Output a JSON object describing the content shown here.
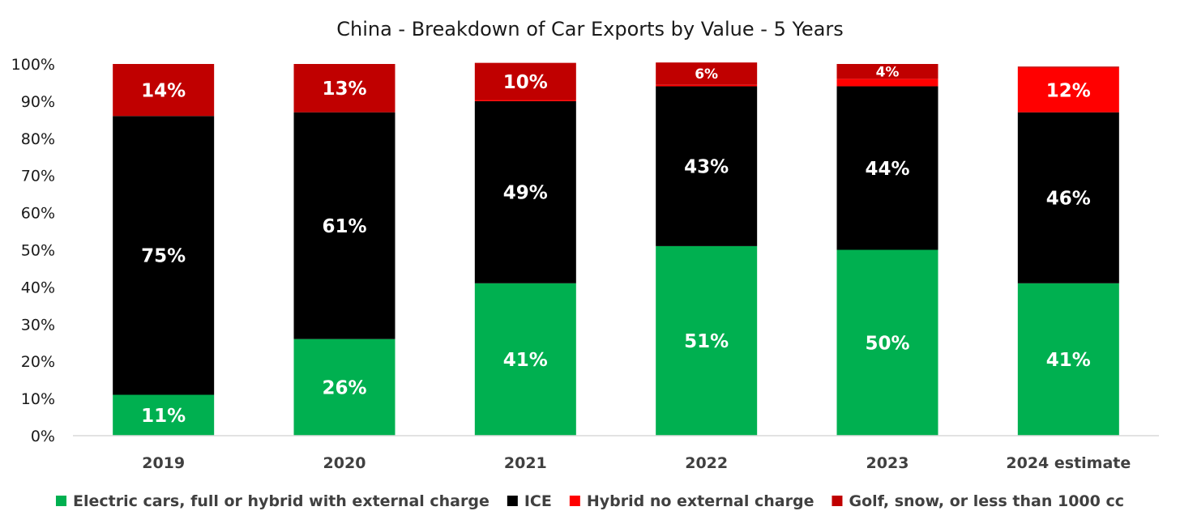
{
  "chart_data": {
    "type": "bar",
    "stacked": true,
    "title": "China - Breakdown of Car Exports by Value - 5 Years",
    "xlabel": "",
    "ylabel": "",
    "ylim": [
      0,
      100
    ],
    "y_ticks": [
      "0%",
      "10%",
      "20%",
      "30%",
      "40%",
      "50%",
      "60%",
      "70%",
      "80%",
      "90%",
      "100%"
    ],
    "grid": false,
    "legend_position": "bottom",
    "categories": [
      "2019",
      "2020",
      "2021",
      "2022",
      "2023",
      "2024 estimate"
    ],
    "series": [
      {
        "name": "Electric cars, full or hybrid with external charge",
        "color": "#00b050",
        "values": [
          11,
          26,
          41,
          51,
          50,
          41
        ],
        "labels": [
          "11%",
          "26%",
          "41%",
          "51%",
          "50%",
          "41%"
        ]
      },
      {
        "name": "ICE",
        "color": "#000000",
        "values": [
          75,
          61,
          49,
          43,
          44,
          46
        ],
        "labels": [
          "75%",
          "61%",
          "49%",
          "43%",
          "44%",
          "46%"
        ]
      },
      {
        "name": "Hybrid no external charge",
        "color": "#ff0000",
        "values": [
          0,
          0,
          0.3,
          0.4,
          2,
          12
        ],
        "labels": [
          "",
          "",
          "",
          "",
          "",
          "12%"
        ]
      },
      {
        "name": "Golf, snow, or less than 1000 cc",
        "color": "#c00000",
        "values": [
          14,
          13,
          10,
          6,
          4,
          0.3
        ],
        "labels": [
          "14%",
          "13%",
          "10%",
          "6%",
          "4%",
          ""
        ]
      }
    ]
  }
}
